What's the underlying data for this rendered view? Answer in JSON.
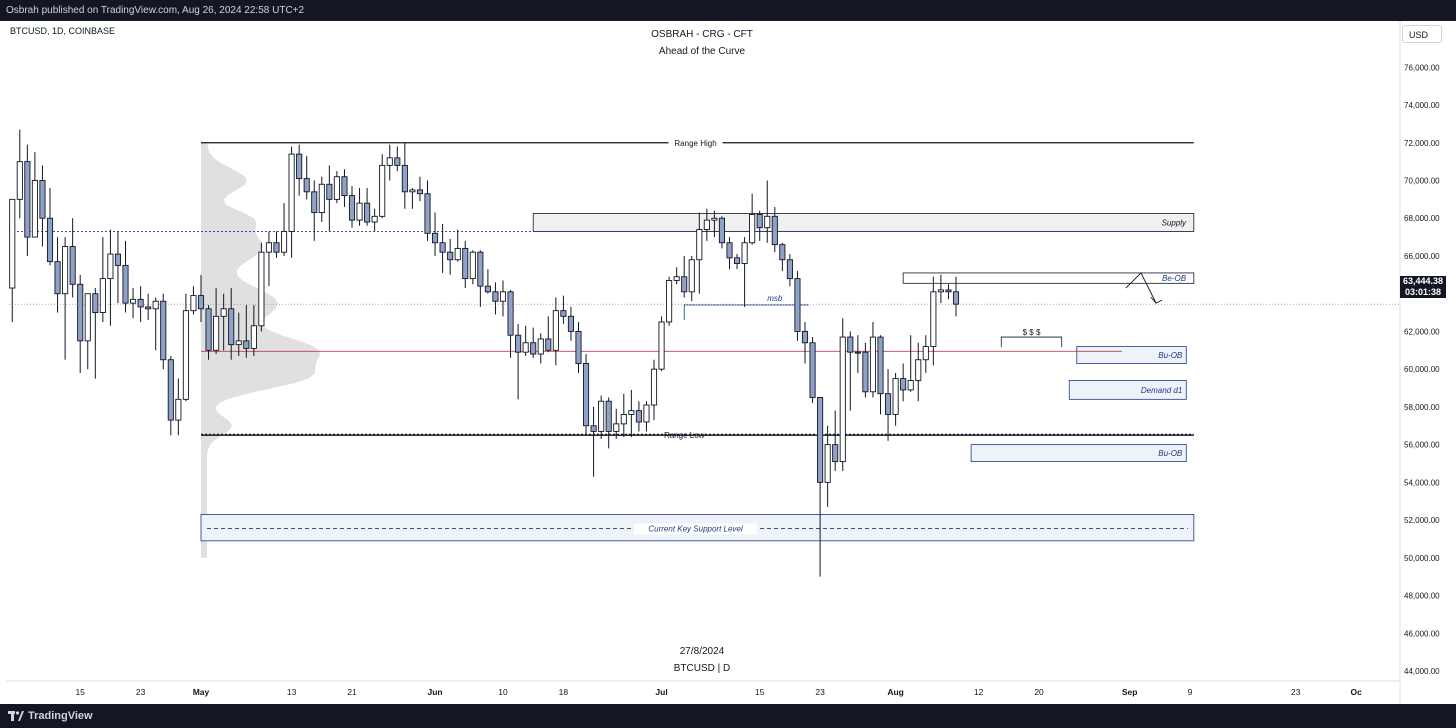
{
  "header": {
    "published_by": "Osbrah published on TradingView.com, Aug 26, 2024 22:58 UTC+2"
  },
  "footer_brand": {
    "name": "TradingView"
  },
  "chart_data": {
    "type": "candlestick",
    "symbol_line": "BTCUSD, 1D, COINBASE",
    "title": "OSBRAH - CRG - CFT",
    "subtitle": "Ahead of the Curve",
    "footer_date": "27/8/2024",
    "footer_symbol": "BTCUSD | D",
    "currency": "USD",
    "last_price": "63,444.38",
    "countdown": "03:01:38",
    "ylim": [
      42500,
      77500
    ],
    "y_ticks": [
      {
        "value": 44000,
        "label": "44,000.00"
      },
      {
        "value": 46000,
        "label": "46,000.00"
      },
      {
        "value": 48000,
        "label": "48,000.00"
      },
      {
        "value": 50000,
        "label": "50,000.00"
      },
      {
        "value": 52000,
        "label": "52,000.00"
      },
      {
        "value": 54000,
        "label": "54,000.00"
      },
      {
        "value": 56000,
        "label": "56,000.00"
      },
      {
        "value": 58000,
        "label": "58,000.00"
      },
      {
        "value": 60000,
        "label": "60,000.00"
      },
      {
        "value": 62000,
        "label": "62,000.00"
      },
      {
        "value": 64000,
        "label": "64,000.00"
      },
      {
        "value": 66000,
        "label": "66,000.00"
      },
      {
        "value": 68000,
        "label": "68,000.00"
      },
      {
        "value": 70000,
        "label": "70,000.00"
      },
      {
        "value": 72000,
        "label": "72,000.00"
      },
      {
        "value": 74000,
        "label": "74,000.00"
      },
      {
        "value": 76000,
        "label": "76,000.00"
      }
    ],
    "x_ticks": [
      {
        "day": -16,
        "label": "15",
        "bold": false
      },
      {
        "day": -8,
        "label": "23",
        "bold": false
      },
      {
        "day": 0,
        "label": "May",
        "bold": true
      },
      {
        "day": 12,
        "label": "13",
        "bold": false
      },
      {
        "day": 20,
        "label": "21",
        "bold": false
      },
      {
        "day": 31,
        "label": "Jun",
        "bold": true
      },
      {
        "day": 40,
        "label": "10",
        "bold": false
      },
      {
        "day": 48,
        "label": "18",
        "bold": false
      },
      {
        "day": 61,
        "label": "Jul",
        "bold": true
      },
      {
        "day": 74,
        "label": "15",
        "bold": false
      },
      {
        "day": 82,
        "label": "23",
        "bold": false
      },
      {
        "day": 92,
        "label": "Aug",
        "bold": true
      },
      {
        "day": 103,
        "label": "12",
        "bold": false
      },
      {
        "day": 111,
        "label": "20",
        "bold": false
      },
      {
        "day": 123,
        "label": "Sep",
        "bold": true
      },
      {
        "day": 131,
        "label": "9",
        "bold": false
      },
      {
        "day": 145,
        "label": "23",
        "bold": false
      },
      {
        "day": 153,
        "label": "Oc",
        "bold": true
      }
    ],
    "candles_ohlc": [
      [
        64300,
        69000,
        62500,
        69000
      ],
      [
        69000,
        72700,
        68000,
        71000
      ],
      [
        71000,
        71900,
        66000,
        67000
      ],
      [
        67000,
        71500,
        67000,
        70000
      ],
      [
        70000,
        70800,
        66500,
        68000
      ],
      [
        68000,
        69600,
        65500,
        65700
      ],
      [
        65700,
        67000,
        63000,
        64000
      ],
      [
        64000,
        67000,
        60500,
        66500
      ],
      [
        66500,
        68000,
        63800,
        64500
      ],
      [
        64500,
        65000,
        59800,
        61500
      ],
      [
        61500,
        64000,
        60000,
        64000
      ],
      [
        64000,
        64300,
        59500,
        63000
      ],
      [
        63000,
        67000,
        62500,
        64800
      ],
      [
        64800,
        67400,
        62300,
        66100
      ],
      [
        66100,
        67300,
        63500,
        65500
      ],
      [
        65500,
        66800,
        63000,
        63500
      ],
      [
        63500,
        64300,
        62700,
        63700
      ],
      [
        63700,
        64400,
        62500,
        63300
      ],
      [
        63300,
        64000,
        62600,
        63200
      ],
      [
        63200,
        63800,
        61000,
        63600
      ],
      [
        63600,
        64000,
        60000,
        60500
      ],
      [
        60500,
        60700,
        56500,
        57300
      ],
      [
        57300,
        59500,
        56500,
        58400
      ],
      [
        58400,
        64000,
        58300,
        63100
      ],
      [
        63100,
        64400,
        62900,
        63900
      ],
      [
        63900,
        65000,
        62500,
        63200
      ],
      [
        63200,
        63400,
        60500,
        61000
      ],
      [
        61000,
        64300,
        60800,
        62800
      ],
      [
        62800,
        64000,
        61000,
        63200
      ],
      [
        63200,
        64300,
        60500,
        61300
      ],
      [
        61300,
        63000,
        60700,
        61500
      ],
      [
        61500,
        63400,
        60600,
        61100
      ],
      [
        61100,
        63400,
        60700,
        62300
      ],
      [
        62300,
        66700,
        62000,
        66200
      ],
      [
        66200,
        67300,
        64400,
        66700
      ],
      [
        66700,
        67300,
        65900,
        66200
      ],
      [
        66200,
        68800,
        66000,
        67300
      ],
      [
        67300,
        71800,
        65900,
        71400
      ],
      [
        71400,
        71900,
        69200,
        70100
      ],
      [
        70100,
        71300,
        69000,
        69400
      ],
      [
        69400,
        70000,
        66800,
        68300
      ],
      [
        68300,
        70200,
        67800,
        69800
      ],
      [
        69800,
        70800,
        67300,
        69000
      ],
      [
        69000,
        70500,
        68800,
        70200
      ],
      [
        70200,
        70600,
        68600,
        69200
      ],
      [
        69200,
        69700,
        67500,
        67900
      ],
      [
        67900,
        69600,
        67600,
        68800
      ],
      [
        68800,
        69600,
        67600,
        67800
      ],
      [
        67800,
        68500,
        67300,
        68100
      ],
      [
        68100,
        71400,
        68000,
        70800
      ],
      [
        70800,
        71900,
        70000,
        71200
      ],
      [
        71200,
        71800,
        70500,
        70800
      ],
      [
        70800,
        72000,
        68500,
        69400
      ],
      [
        69400,
        69600,
        68500,
        69500
      ],
      [
        69500,
        70200,
        68900,
        69300
      ],
      [
        69300,
        70000,
        66800,
        67200
      ],
      [
        67200,
        68300,
        66000,
        66700
      ],
      [
        66700,
        67700,
        65100,
        66200
      ],
      [
        66200,
        66900,
        65000,
        65800
      ],
      [
        65800,
        67400,
        65700,
        66400
      ],
      [
        66400,
        66800,
        64300,
        64800
      ],
      [
        64800,
        66300,
        64500,
        66200
      ],
      [
        66200,
        66300,
        63300,
        64400
      ],
      [
        64400,
        65300,
        64000,
        64100
      ],
      [
        64100,
        64600,
        62900,
        63600
      ],
      [
        63600,
        64700,
        62800,
        64100
      ],
      [
        64100,
        64200,
        60600,
        61800
      ],
      [
        61800,
        62400,
        58400,
        60900
      ],
      [
        60900,
        62300,
        60700,
        61400
      ],
      [
        61400,
        62200,
        60600,
        60800
      ],
      [
        60800,
        61900,
        60300,
        61600
      ],
      [
        61600,
        62800,
        60900,
        61000
      ],
      [
        61000,
        63800,
        60200,
        63100
      ],
      [
        63100,
        63900,
        62400,
        62800
      ],
      [
        62800,
        63300,
        61500,
        62000
      ],
      [
        62000,
        62500,
        59800,
        60300
      ],
      [
        60300,
        60800,
        56500,
        57000
      ],
      [
        57000,
        58000,
        54300,
        56700
      ],
      [
        56700,
        58600,
        56300,
        58300
      ],
      [
        58300,
        58500,
        55800,
        56700
      ],
      [
        56700,
        57900,
        56300,
        57100
      ],
      [
        57100,
        58700,
        56400,
        57600
      ],
      [
        57600,
        58900,
        56400,
        57800
      ],
      [
        57800,
        58300,
        56700,
        57200
      ],
      [
        57200,
        58300,
        56700,
        58100
      ],
      [
        58100,
        60500,
        57300,
        60000
      ],
      [
        60000,
        62800,
        59900,
        62500
      ],
      [
        62500,
        64900,
        62300,
        64700
      ],
      [
        64700,
        65400,
        64500,
        64900
      ],
      [
        64900,
        66000,
        63800,
        64100
      ],
      [
        64100,
        66000,
        63600,
        65800
      ],
      [
        65800,
        68300,
        64000,
        67400
      ],
      [
        67400,
        68500,
        66800,
        67900
      ],
      [
        67900,
        68400,
        67000,
        68000
      ],
      [
        68000,
        68100,
        66400,
        66700
      ],
      [
        66700,
        67000,
        65300,
        65900
      ],
      [
        65900,
        66100,
        65300,
        65600
      ],
      [
        65600,
        67000,
        63300,
        66700
      ],
      [
        66700,
        69300,
        66600,
        68200
      ],
      [
        68200,
        68400,
        66800,
        67500
      ],
      [
        67500,
        70000,
        66700,
        68100
      ],
      [
        68100,
        68600,
        66200,
        66600
      ],
      [
        66600,
        66700,
        65200,
        65800
      ],
      [
        65800,
        66100,
        64400,
        64800
      ],
      [
        64800,
        65200,
        61500,
        62000
      ],
      [
        62000,
        62500,
        60300,
        61400
      ],
      [
        61400,
        61700,
        58200,
        58500
      ],
      [
        58500,
        58500,
        49000,
        54000
      ],
      [
        54000,
        57000,
        52700,
        56000
      ],
      [
        56000,
        57800,
        54600,
        55100
      ],
      [
        55100,
        62700,
        54600,
        61700
      ],
      [
        61700,
        62000,
        57800,
        60900
      ],
      [
        60900,
        61800,
        59800,
        60900
      ],
      [
        60900,
        61400,
        58500,
        58800
      ],
      [
        58800,
        62500,
        58500,
        61700
      ],
      [
        61700,
        61800,
        57600,
        58700
      ],
      [
        58700,
        60000,
        56200,
        57600
      ],
      [
        57600,
        59800,
        57000,
        59500
      ],
      [
        59500,
        60300,
        58300,
        58900
      ],
      [
        58900,
        61800,
        58800,
        59400
      ],
      [
        59400,
        61400,
        58300,
        60500
      ],
      [
        60500,
        61800,
        59800,
        61200
      ],
      [
        61200,
        64900,
        60200,
        64100
      ],
      [
        64100,
        65000,
        63500,
        64200
      ],
      [
        64200,
        64500,
        63700,
        64100
      ],
      [
        64100,
        64900,
        62800,
        63444
      ]
    ],
    "annotations": {
      "range_high": {
        "label": "Range High",
        "value": 72000
      },
      "range_low": {
        "label": "Range Low",
        "value": 56500
      },
      "poc_level": {
        "value": 60950
      },
      "dotted_level": {
        "value": 67300
      },
      "last_price_level": {
        "value": 63444
      },
      "supply": {
        "label": "Supply",
        "top": 68250,
        "bottom": 67300
      },
      "be_ob": {
        "label": "Be-OB",
        "top": 65100,
        "bottom": 64550
      },
      "bu_ob_1": {
        "label": "Bu-OB",
        "top": 61200,
        "bottom": 60300
      },
      "demand_d1": {
        "label": "Demand d1",
        "top": 59400,
        "bottom": 58400
      },
      "bu_ob_2": {
        "label": "Bu-OB",
        "top": 56000,
        "bottom": 55100
      },
      "key_support": {
        "label": "Current Key Support Level",
        "top": 52300,
        "bottom": 50900,
        "mid": 51550
      },
      "msb": {
        "label": "msb",
        "value": 63400
      },
      "dollars": {
        "label": "$ $ $",
        "value": 61700
      }
    },
    "grid": false,
    "legend": "none"
  }
}
